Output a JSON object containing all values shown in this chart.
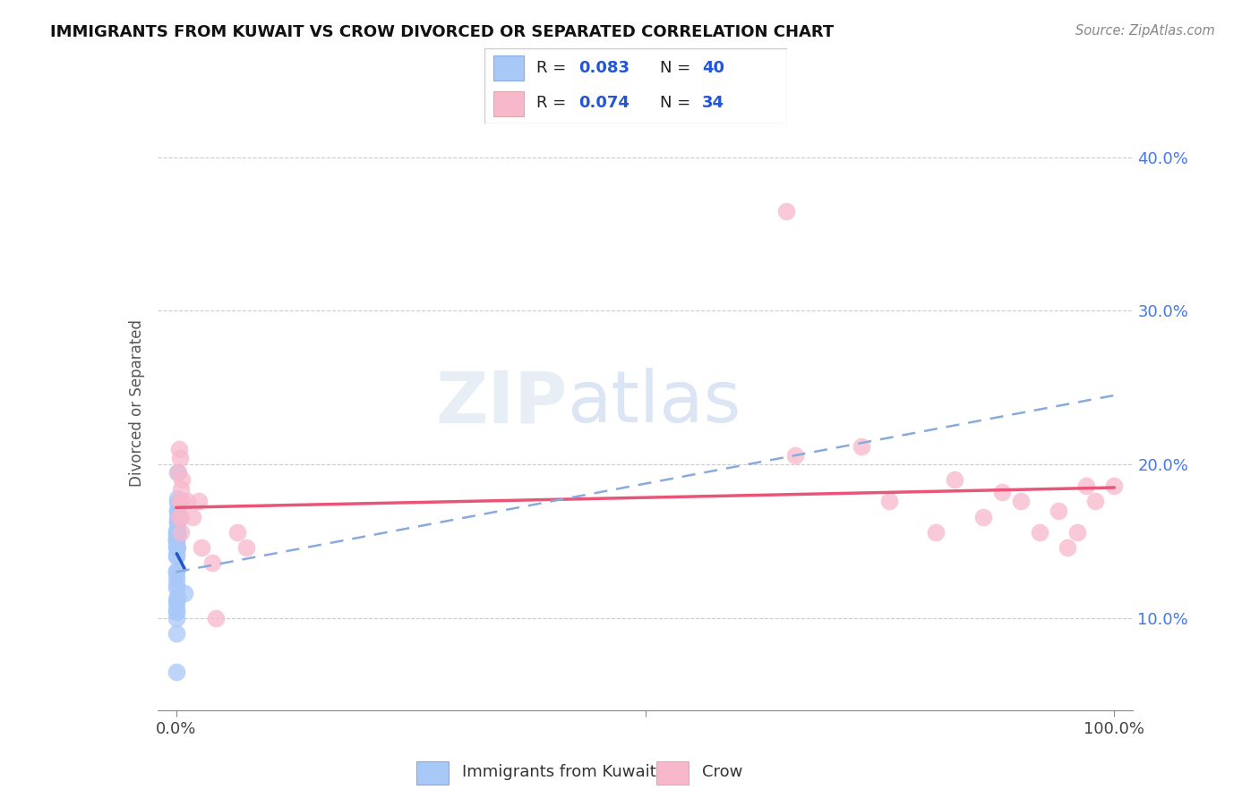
{
  "title": "IMMIGRANTS FROM KUWAIT VS CROW DIVORCED OR SEPARATED CORRELATION CHART",
  "source": "Source: ZipAtlas.com",
  "ylabel": "Divorced or Separated",
  "y_ticks": [
    0.1,
    0.2,
    0.3,
    0.4
  ],
  "y_tick_labels": [
    "10.0%",
    "20.0%",
    "30.0%",
    "40.0%"
  ],
  "legend_1_R": "0.083",
  "legend_1_N": "40",
  "legend_2_R": "0.074",
  "legend_2_N": "34",
  "blue_color": "#a8c8f8",
  "pink_color": "#f8b8cc",
  "blue_line_color": "#2255cc",
  "pink_line_color": "#e85577",
  "dashed_line_color": "#88aadd",
  "watermark_zip": "ZIP",
  "watermark_atlas": "atlas",
  "xlim": [
    -0.02,
    1.02
  ],
  "ylim": [
    0.04,
    0.44
  ],
  "blue_scatter_x": [
    0.0008,
    0.0012,
    0.0008,
    0.0009,
    0.0015,
    0.0008,
    0.001,
    0.0007,
    0.0007,
    0.001,
    0.0008,
    0.0013,
    0.001,
    0.0008,
    0.0018,
    0.0007,
    0.001,
    0.0008,
    0.0007,
    0.0007,
    0.0007,
    0.0007,
    0.0007,
    0.0009,
    0.0007,
    0.0007,
    0.0007,
    0.0007,
    0.0007,
    0.0007,
    0.0007,
    0.009,
    0.001,
    0.0007,
    0.0007,
    0.0007,
    0.0007,
    0.0007,
    0.0007,
    0.0006
  ],
  "blue_scatter_y": [
    0.175,
    0.195,
    0.17,
    0.165,
    0.178,
    0.17,
    0.162,
    0.157,
    0.155,
    0.157,
    0.154,
    0.162,
    0.156,
    0.154,
    0.166,
    0.154,
    0.156,
    0.154,
    0.151,
    0.151,
    0.15,
    0.147,
    0.146,
    0.146,
    0.141,
    0.14,
    0.131,
    0.13,
    0.126,
    0.122,
    0.12,
    0.116,
    0.114,
    0.112,
    0.11,
    0.106,
    0.104,
    0.1,
    0.09,
    0.065
  ],
  "pink_scatter_x": [
    0.002,
    0.003,
    0.004,
    0.006,
    0.004,
    0.003,
    0.005,
    0.006,
    0.005,
    0.005,
    0.012,
    0.017,
    0.024,
    0.027,
    0.038,
    0.042,
    0.065,
    0.075,
    0.65,
    0.66,
    0.73,
    0.76,
    0.81,
    0.83,
    0.86,
    0.88,
    0.9,
    0.92,
    0.94,
    0.95,
    0.96,
    0.97,
    0.98,
    1.0
  ],
  "pink_scatter_y": [
    0.195,
    0.21,
    0.204,
    0.19,
    0.176,
    0.166,
    0.184,
    0.176,
    0.166,
    0.156,
    0.176,
    0.166,
    0.176,
    0.146,
    0.136,
    0.1,
    0.156,
    0.146,
    0.365,
    0.206,
    0.212,
    0.176,
    0.156,
    0.19,
    0.166,
    0.182,
    0.176,
    0.156,
    0.17,
    0.146,
    0.156,
    0.186,
    0.176,
    0.186
  ],
  "blue_line_x0": 0.0,
  "blue_line_x1": 0.01,
  "blue_line_y0": 0.155,
  "blue_line_y1": 0.165,
  "pink_line_y0": 0.174,
  "pink_line_y1": 0.183,
  "dashed_line_x0": 0.0,
  "dashed_line_x1": 1.0,
  "dashed_line_y0": 0.13,
  "dashed_line_y1": 0.245
}
